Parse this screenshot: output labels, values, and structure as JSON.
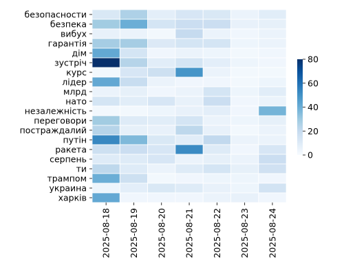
{
  "chart_data": {
    "type": "heatmap",
    "title": "",
    "xlabel": "",
    "ylabel": "",
    "columns": [
      "2025-08-18",
      "2025-08-19",
      "2025-08-20",
      "2025-08-21",
      "2025-08-22",
      "2025-08-23",
      "2025-08-24"
    ],
    "rows": [
      "безопасности",
      "безпека",
      "вибух",
      "гарантія",
      "дім",
      "зустріч",
      "курс",
      "лідер",
      "млрд",
      "нато",
      "незалежність",
      "переговори",
      "постраждалий",
      "путін",
      "ракета",
      "серпень",
      "ти",
      "трампом",
      "украина",
      "харків"
    ],
    "values": [
      [
        12,
        26,
        8,
        13,
        12,
        5,
        9
      ],
      [
        29,
        40,
        14,
        18,
        18,
        6,
        7
      ],
      [
        6,
        5,
        2,
        20,
        5,
        3,
        5
      ],
      [
        28,
        28,
        11,
        14,
        14,
        4,
        5
      ],
      [
        42,
        14,
        3,
        5,
        4,
        2,
        3
      ],
      [
        80,
        24,
        9,
        14,
        8,
        4,
        3
      ],
      [
        2,
        13,
        17,
        49,
        5,
        2,
        2
      ],
      [
        42,
        19,
        5,
        3,
        3,
        2,
        4
      ],
      [
        5,
        7,
        3,
        5,
        14,
        4,
        9
      ],
      [
        14,
        9,
        13,
        6,
        18,
        3,
        5
      ],
      [
        2,
        2,
        4,
        6,
        8,
        3,
        38
      ],
      [
        29,
        10,
        9,
        14,
        5,
        4,
        7
      ],
      [
        24,
        7,
        6,
        22,
        6,
        2,
        5
      ],
      [
        53,
        36,
        12,
        9,
        21,
        5,
        5
      ],
      [
        17,
        18,
        13,
        52,
        10,
        3,
        13
      ],
      [
        10,
        10,
        13,
        5,
        7,
        5,
        18
      ],
      [
        22,
        10,
        5,
        10,
        14,
        7,
        16
      ],
      [
        40,
        17,
        2,
        3,
        4,
        4,
        3
      ],
      [
        4,
        8,
        12,
        10,
        6,
        4,
        15
      ],
      [
        42,
        3,
        3,
        3,
        5,
        6,
        3
      ]
    ],
    "colorbar": {
      "min": 0,
      "max": 80,
      "ticks": [
        0,
        20,
        40,
        60,
        80
      ],
      "tick_labels": [
        "0",
        "20",
        "40",
        "60",
        "80"
      ]
    },
    "colormap": {
      "name": "Blues",
      "stops": [
        "#f7fbff",
        "#deebf7",
        "#c6dbef",
        "#9ecae1",
        "#6baed6",
        "#4292c6",
        "#2171b5",
        "#08519c",
        "#08306b"
      ]
    },
    "grid": true,
    "cell_border_color": "#ffffff"
  }
}
